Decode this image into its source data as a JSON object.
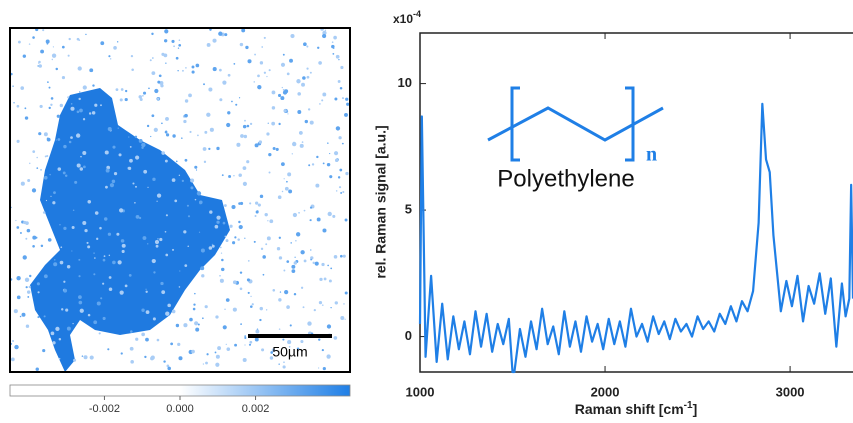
{
  "chart_data": {
    "type": "line",
    "y_multiplier": "x10",
    "y_multiplier_exp": "-4",
    "y_label": "rel. Raman signal [a.u.]",
    "x_label": "Raman shift [cm",
    "x_label_exp": "-1",
    "x_label_end": "]",
    "annotation": "Polyethylene",
    "annotation_subscript": "n",
    "xlim": [
      1000,
      3340
    ],
    "ylim": [
      -1.4,
      12
    ],
    "xticks": [
      1000,
      2000,
      3000
    ],
    "yticks": [
      0,
      5,
      10
    ],
    "series": [
      {
        "color": "#1f7fe6",
        "x": [
          1000,
          1010,
          1030,
          1060,
          1090,
          1120,
          1150,
          1180,
          1210,
          1240,
          1270,
          1300,
          1330,
          1360,
          1390,
          1420,
          1450,
          1480,
          1500,
          1510,
          1540,
          1570,
          1600,
          1630,
          1660,
          1690,
          1720,
          1750,
          1780,
          1810,
          1840,
          1870,
          1900,
          1930,
          1960,
          1990,
          2020,
          2050,
          2080,
          2110,
          2140,
          2170,
          2200,
          2230,
          2260,
          2290,
          2320,
          2350,
          2380,
          2410,
          2440,
          2470,
          2500,
          2530,
          2560,
          2590,
          2620,
          2650,
          2680,
          2710,
          2740,
          2770,
          2800,
          2830,
          2850,
          2870,
          2890,
          2910,
          2930,
          2950,
          2980,
          3010,
          3040,
          3070,
          3100,
          3130,
          3160,
          3190,
          3220,
          3250,
          3280,
          3300,
          3320,
          3330,
          3340
        ],
        "values": [
          0.5,
          8.7,
          -0.8,
          2.4,
          -1.0,
          1.3,
          -0.9,
          0.8,
          -0.5,
          0.6,
          -0.7,
          1.0,
          -0.4,
          0.9,
          -0.6,
          0.5,
          -0.3,
          0.7,
          -1.4,
          -1.4,
          0.3,
          -0.8,
          0.6,
          -0.5,
          1.1,
          -0.3,
          0.4,
          -0.7,
          1.0,
          -0.4,
          0.6,
          -0.6,
          0.8,
          -0.2,
          0.5,
          -0.5,
          0.7,
          -0.3,
          0.6,
          -0.4,
          1.1,
          0.0,
          0.5,
          -0.2,
          0.8,
          0.1,
          0.6,
          -0.1,
          0.7,
          0.2,
          0.5,
          0.0,
          0.8,
          0.3,
          0.6,
          0.2,
          0.9,
          0.5,
          1.2,
          0.6,
          1.4,
          1.0,
          1.8,
          4.5,
          9.2,
          7.0,
          6.5,
          4.0,
          2.5,
          1.0,
          2.2,
          1.2,
          2.4,
          0.6,
          2.0,
          1.3,
          2.5,
          0.9,
          2.3,
          -0.4,
          2.1,
          0.8,
          1.5,
          6.0,
          1.5
        ]
      }
    ]
  },
  "image_panel": {
    "scale_bar_label": "50µm",
    "colorbar": {
      "lim": [
        -0.0045,
        0.0045
      ],
      "ticks": [
        -0.002,
        {
          "value": 0,
          "label": "0.000"
        },
        0.002
      ]
    }
  }
}
